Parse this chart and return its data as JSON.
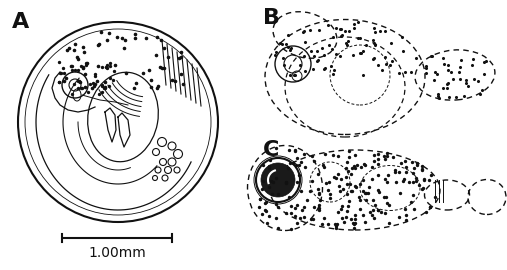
{
  "bg_color": "#ffffff",
  "label_A": "A",
  "label_B": "B",
  "label_C": "C",
  "scale_bar_text": "1.00mm",
  "fig_width": 5.07,
  "fig_height": 2.7,
  "dpi": 100,
  "label_fontsize": 13,
  "scale_fontsize": 10,
  "linewidth": 1.0,
  "dot_color": "#111111",
  "line_color": "#111111"
}
